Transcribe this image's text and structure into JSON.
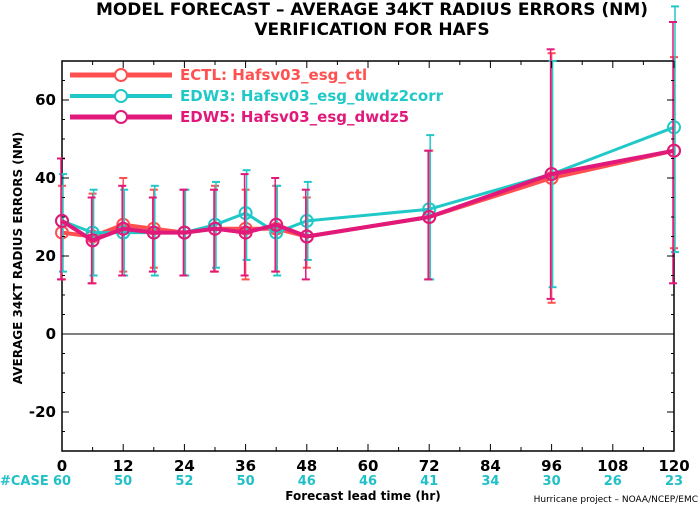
{
  "chart_data": {
    "type": "line",
    "title": "MODEL FORECAST – AVERAGE 34KT RADIUS ERRORS (NM)",
    "subtitle": "VERIFICATION FOR HAFS",
    "xlabel": "Forecast lead time (hr)",
    "ylabel": "AVERAGE 34KT RADIUS ERRORS (NM)",
    "xlim": [
      0,
      120
    ],
    "ylim": [
      -30,
      70
    ],
    "x_ticks": [
      0,
      12,
      24,
      36,
      48,
      60,
      72,
      84,
      96,
      108,
      120
    ],
    "y_ticks": [
      -20,
      0,
      20,
      40,
      60
    ],
    "zero_line": 0,
    "legend_position": "top-left",
    "case_label": "#CASE",
    "cases": {
      "x": [
        0,
        12,
        24,
        36,
        48,
        60,
        72,
        84,
        96,
        108,
        120
      ],
      "values": [
        "60",
        "50",
        "52",
        "50",
        "46",
        "46",
        "41",
        "34",
        "30",
        "26",
        "23"
      ]
    },
    "credit": "Hurricane project – NOAA/NCEP/EMC",
    "series": [
      {
        "name": "ECTL: Hafsv03_esg_ctl",
        "color": "#ff5050",
        "x": [
          0,
          6,
          12,
          18,
          24,
          30,
          36,
          42,
          48,
          72,
          96,
          120
        ],
        "y": [
          26,
          25,
          28,
          27,
          26,
          27,
          27,
          27,
          25,
          30,
          40,
          47
        ],
        "err_low": [
          14,
          13,
          16,
          17,
          15,
          16,
          14,
          16,
          17,
          14,
          8,
          22
        ],
        "err_high": [
          38,
          36,
          40,
          37,
          37,
          38,
          37,
          38,
          35,
          47,
          72,
          71
        ]
      },
      {
        "name": "EDW3: Hafsv03_esg_dwdz2corr",
        "color": "#20c8c8",
        "x": [
          0,
          6,
          12,
          18,
          24,
          30,
          36,
          42,
          48,
          72,
          96,
          120
        ],
        "y": [
          29,
          26,
          26,
          26,
          26,
          28,
          31,
          26,
          29,
          32,
          41,
          53
        ],
        "err_low": [
          16,
          15,
          15,
          15,
          15,
          17,
          19,
          15,
          19,
          14,
          12,
          21
        ],
        "err_high": [
          41,
          37,
          37,
          38,
          37,
          39,
          42,
          38,
          39,
          51,
          70,
          84
        ]
      },
      {
        "name": "EDW5: Hafsv03_esg_dwdz5",
        "color": "#e0197a",
        "x": [
          0,
          6,
          12,
          18,
          24,
          30,
          36,
          42,
          48,
          72,
          96,
          120
        ],
        "y": [
          29,
          24,
          27,
          26,
          26,
          27,
          26,
          28,
          25,
          30,
          41,
          47
        ],
        "err_low": [
          14,
          13,
          15,
          16,
          15,
          16,
          15,
          16,
          14,
          14,
          9,
          13
        ],
        "err_high": [
          45,
          35,
          38,
          35,
          37,
          37,
          41,
          40,
          37,
          47,
          73,
          80
        ]
      }
    ]
  }
}
